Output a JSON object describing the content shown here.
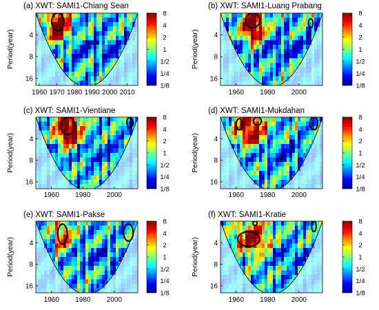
{
  "figure": {
    "colorbar_ticks": [
      "8",
      "4",
      "2",
      "1",
      "1/2",
      "1/4",
      "1/8"
    ],
    "colormap": [
      "#00008f",
      "#0000ff",
      "#0080ff",
      "#00ffff",
      "#80ff80",
      "#ffff00",
      "#ff8000",
      "#ff0000",
      "#800000"
    ],
    "cone_color": "#000000",
    "significance_contour_color": "#000000"
  },
  "chart_data": [
    {
      "type": "heatmap",
      "title": "(a) XWT: SAMI1-Chiang Sean",
      "xlabel": "",
      "ylabel": "Period(year)",
      "xlim": [
        1958,
        2016
      ],
      "x_ticks": [
        "1960",
        "1970",
        "1980",
        "1990",
        "2000",
        "2010"
      ],
      "y_ticks": [
        "4",
        "8",
        "16"
      ],
      "y_scale": "log2",
      "ylim": [
        2,
        20
      ],
      "colorbar": {
        "scale": "log2",
        "range": [
          0.125,
          8
        ],
        "ticks": [
          "8",
          "4",
          "2",
          "1",
          "1/2",
          "1/4",
          "1/8"
        ]
      },
      "significant_regions": [
        {
          "time_range": [
            1967,
            1974
          ],
          "period_range": [
            2,
            3.5
          ]
        }
      ],
      "high_power_periods": [
        {
          "time_range": [
            1966,
            1976
          ],
          "period_range": [
            2,
            4
          ],
          "power": 8
        }
      ]
    },
    {
      "type": "heatmap",
      "title": "(b) XWT: SAMI1-Luang Prabang",
      "xlabel": "",
      "ylabel": "Period(year)",
      "xlim": [
        1950,
        2015
      ],
      "x_ticks": [
        "1960",
        "1980",
        "2000"
      ],
      "y_ticks": [
        "4",
        "8",
        "16"
      ],
      "y_scale": "log2",
      "ylim": [
        2,
        20
      ],
      "colorbar": {
        "scale": "log2",
        "range": [
          0.125,
          8
        ],
        "ticks": [
          "8",
          "4",
          "2",
          "1",
          "1/2",
          "1/4",
          "1/8"
        ]
      },
      "significant_regions": [
        {
          "time_range": [
            1966,
            1975
          ],
          "period_range": [
            2,
            3.2
          ]
        },
        {
          "time_range": [
            2006,
            2009
          ],
          "period_range": [
            2.4,
            3.2
          ]
        }
      ],
      "high_power_periods": [
        {
          "time_range": [
            1965,
            1977
          ],
          "period_range": [
            2,
            4
          ],
          "power": 8
        }
      ]
    },
    {
      "type": "heatmap",
      "title": "(c) XWT: SAMI1-Vientiane",
      "xlabel": "",
      "ylabel": "Period(year)",
      "xlim": [
        1950,
        2015
      ],
      "x_ticks": [
        "1960",
        "1980",
        "2000"
      ],
      "y_ticks": [
        "4",
        "8",
        "16"
      ],
      "y_scale": "log2",
      "ylim": [
        2,
        20
      ],
      "colorbar": {
        "scale": "log2",
        "range": [
          0.125,
          8
        ],
        "ticks": [
          "8",
          "4",
          "2",
          "1",
          "1/2",
          "1/4",
          "1/8"
        ]
      },
      "significant_regions": [
        {
          "time_range": [
            1966,
            1975
          ],
          "period_range": [
            2,
            3.5
          ]
        },
        {
          "time_range": [
            2008,
            2012
          ],
          "period_range": [
            2,
            2.8
          ]
        }
      ],
      "high_power_periods": [
        {
          "time_range": [
            1964,
            1978
          ],
          "period_range": [
            2,
            4
          ],
          "power": 8
        }
      ]
    },
    {
      "type": "heatmap",
      "title": "(d) XWT: SAMI1-Mukdahan",
      "xlabel": "",
      "ylabel": "Period(year)",
      "xlim": [
        1950,
        2015
      ],
      "x_ticks": [
        "1960",
        "1980",
        "2000"
      ],
      "y_ticks": [
        "4",
        "8",
        "16"
      ],
      "y_scale": "log2",
      "ylim": [
        2,
        20
      ],
      "colorbar": {
        "scale": "log2",
        "range": [
          0.125,
          8
        ],
        "ticks": [
          "8",
          "4",
          "2",
          "1",
          "1/2",
          "1/4",
          "1/8"
        ]
      },
      "significant_regions": [
        {
          "time_range": [
            1960,
            1964
          ],
          "period_range": [
            2.1,
            3.0
          ]
        },
        {
          "time_range": [
            1971,
            1976
          ],
          "period_range": [
            2.0,
            2.6
          ]
        },
        {
          "time_range": [
            2007,
            2012
          ],
          "period_range": [
            2.0,
            3.0
          ]
        }
      ],
      "high_power_periods": [
        {
          "time_range": [
            1960,
            1978
          ],
          "period_range": [
            2,
            4
          ],
          "power": 4
        }
      ]
    },
    {
      "type": "heatmap",
      "title": "(e) XWT: SAMI1-Pakse",
      "xlabel": "",
      "ylabel": "Period(year)",
      "xlim": [
        1950,
        2015
      ],
      "x_ticks": [
        "1960",
        "1980",
        "2000"
      ],
      "y_ticks": [
        "4",
        "8",
        "16"
      ],
      "y_scale": "log2",
      "ylim": [
        2,
        20
      ],
      "colorbar": {
        "scale": "log2",
        "range": [
          0.125,
          8
        ],
        "ticks": [
          "8",
          "4",
          "2",
          "1",
          "1/2",
          "1/4",
          "1/8"
        ]
      },
      "significant_regions": [
        {
          "time_range": [
            1964,
            1970
          ],
          "period_range": [
            2.2,
            4.2
          ]
        },
        {
          "time_range": [
            2006,
            2012
          ],
          "period_range": [
            2.2,
            3.8
          ]
        }
      ],
      "high_power_periods": [
        {
          "time_range": [
            1962,
            1972
          ],
          "period_range": [
            2,
            5
          ],
          "power": 2
        }
      ]
    },
    {
      "type": "heatmap",
      "title": "(f) XWT: SAMI1-Kratie",
      "xlabel": "",
      "ylabel": "Period(year)",
      "xlim": [
        1950,
        2015
      ],
      "x_ticks": [
        "1960",
        "1980",
        "2000"
      ],
      "y_ticks": [
        "4",
        "8",
        "16"
      ],
      "y_scale": "log2",
      "ylim": [
        2,
        20
      ],
      "colorbar": {
        "scale": "log2",
        "range": [
          0.125,
          8
        ],
        "ticks": [
          "8",
          "4",
          "2",
          "1",
          "1/2",
          "1/4",
          "1/8"
        ]
      },
      "significant_regions": [
        {
          "time_range": [
            1961,
            1975
          ],
          "period_range": [
            2.8,
            4.5
          ]
        },
        {
          "time_range": [
            1971,
            1973
          ],
          "period_range": [
            2.0,
            2.3
          ]
        },
        {
          "time_range": [
            2008,
            2011
          ],
          "period_range": [
            2.0,
            2.8
          ]
        }
      ],
      "high_power_periods": [
        {
          "time_range": [
            1960,
            1980
          ],
          "period_range": [
            2.5,
            5
          ],
          "power": 4
        }
      ]
    }
  ]
}
